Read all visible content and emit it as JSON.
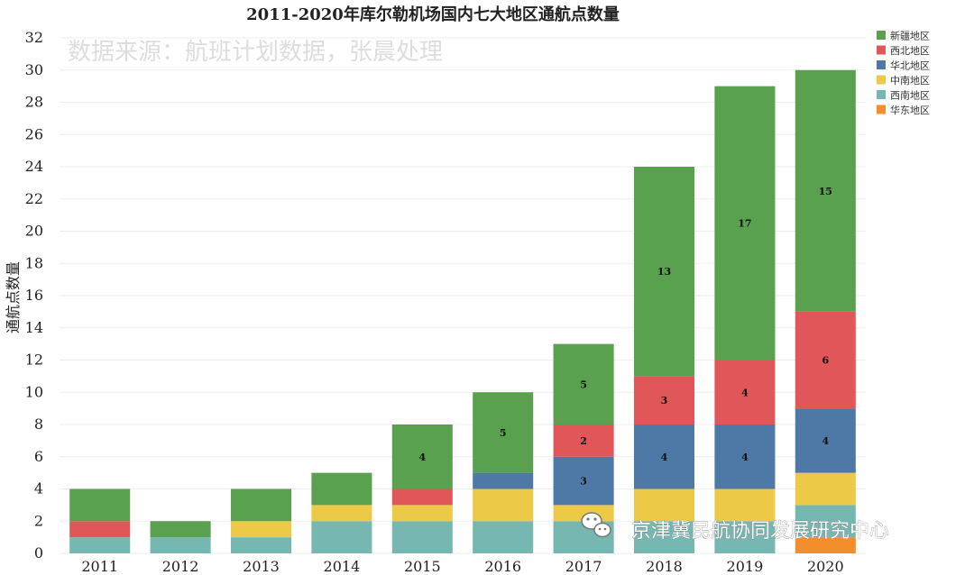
{
  "chart_data": {
    "type": "bar",
    "stacked": true,
    "title": "2011-2020年库尔勒机场国内七大地区通航点数量",
    "annotation": "数据来源：航班计划数据，张晨处理",
    "xlabel": "",
    "ylabel": "通航点数量",
    "ylim": [
      0,
      32
    ],
    "yticks": [
      0,
      2,
      4,
      6,
      8,
      10,
      12,
      14,
      16,
      18,
      20,
      22,
      24,
      26,
      28,
      30,
      32
    ],
    "grid": true,
    "legend_position": "top-right",
    "categories": [
      "2011",
      "2012",
      "2013",
      "2014",
      "2015",
      "2016",
      "2017",
      "2018",
      "2019",
      "2020"
    ],
    "series": [
      {
        "name": "华东地区",
        "color": "#F28E2B",
        "values": [
          0,
          0,
          0,
          0,
          0,
          0,
          0,
          0,
          0,
          1
        ]
      },
      {
        "name": "西南地区",
        "color": "#76B7B2",
        "values": [
          1,
          1,
          1,
          2,
          2,
          2,
          2,
          2,
          2,
          2
        ]
      },
      {
        "name": "中南地区",
        "color": "#EDC948",
        "values": [
          0,
          0,
          1,
          1,
          1,
          2,
          1,
          2,
          2,
          2
        ]
      },
      {
        "name": "华北地区",
        "color": "#4E79A7",
        "values": [
          0,
          0,
          0,
          0,
          0,
          1,
          3,
          4,
          4,
          4
        ]
      },
      {
        "name": "西北地区",
        "color": "#E15759",
        "values": [
          1,
          0,
          0,
          0,
          1,
          0,
          2,
          3,
          4,
          6
        ]
      },
      {
        "name": "新疆地区",
        "color": "#59A14F",
        "values": [
          2,
          1,
          2,
          2,
          4,
          5,
          5,
          13,
          17,
          15
        ]
      }
    ],
    "legend_order": [
      "新疆地区",
      "西北地区",
      "华北地区",
      "中南地区",
      "西南地区",
      "华东地区"
    ],
    "data_labels": [
      {
        "category": "2015",
        "series": "新疆地区",
        "text": "4"
      },
      {
        "category": "2016",
        "series": "新疆地区",
        "text": "5"
      },
      {
        "category": "2017",
        "series": "新疆地区",
        "text": "5"
      },
      {
        "category": "2017",
        "series": "西北地区",
        "text": "2"
      },
      {
        "category": "2017",
        "series": "华北地区",
        "text": "3"
      },
      {
        "category": "2018",
        "series": "新疆地区",
        "text": "13"
      },
      {
        "category": "2018",
        "series": "西北地区",
        "text": "3"
      },
      {
        "category": "2018",
        "series": "华北地区",
        "text": "4"
      },
      {
        "category": "2019",
        "series": "新疆地区",
        "text": "17"
      },
      {
        "category": "2019",
        "series": "西北地区",
        "text": "4"
      },
      {
        "category": "2019",
        "series": "华北地区",
        "text": "4"
      },
      {
        "category": "2020",
        "series": "新疆地区",
        "text": "15"
      },
      {
        "category": "2020",
        "series": "西北地区",
        "text": "6"
      },
      {
        "category": "2020",
        "series": "华北地区",
        "text": "4"
      }
    ]
  },
  "watermark": {
    "text": "京津冀民航协同发展研究中心",
    "icon": "wechat-icon"
  }
}
